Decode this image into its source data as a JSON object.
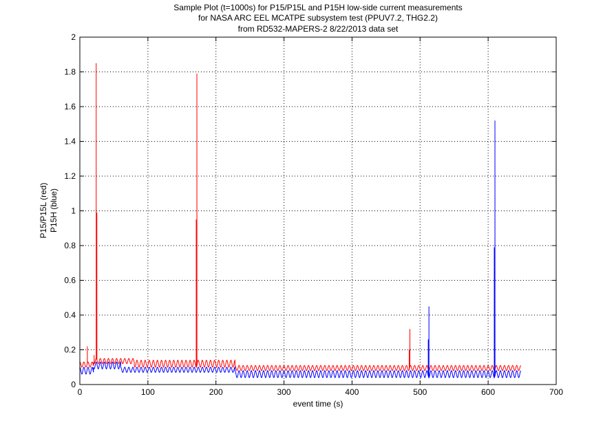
{
  "chart_data": {
    "type": "line",
    "title": [
      "Sample Plot (t=1000s) for P15/P15L and P15H low-side current measurements",
      "for NASA ARC EEL MCATPE subsystem test (PPUV7.2, THG2.2)",
      "from RD532-MAPERS-2 8/22/2013 data set"
    ],
    "xlabel": "event time (s)",
    "ylabel": [
      "P15/P15L (red)",
      "P15H (blue)"
    ],
    "xlim": [
      0,
      700
    ],
    "ylim": [
      0,
      2
    ],
    "xticks": [
      0,
      100,
      200,
      300,
      400,
      500,
      600,
      700
    ],
    "yticks": [
      0,
      0.2,
      0.4,
      0.6,
      0.8,
      1,
      1.2,
      1.4,
      1.6,
      1.8,
      2
    ],
    "grid": true,
    "series": [
      {
        "color": "#ff0000",
        "baseline_segments": [
          {
            "x_start": 0,
            "x_end": 20,
            "low": 0.1,
            "high": 0.13
          },
          {
            "x_start": 20,
            "x_end": 80,
            "low": 0.12,
            "high": 0.15
          },
          {
            "x_start": 80,
            "x_end": 228,
            "low": 0.1,
            "high": 0.14
          },
          {
            "x_start": 228,
            "x_end": 648,
            "low": 0.08,
            "high": 0.11
          }
        ],
        "period": 6,
        "spikes": [
          {
            "x": 11,
            "y": 0.22
          },
          {
            "x": 21,
            "y": 0.17
          },
          {
            "x": 24,
            "y": 1.85
          },
          {
            "x": 25,
            "y": 0.99
          },
          {
            "x": 171,
            "y": 0.95
          },
          {
            "x": 172,
            "y": 1.79
          },
          {
            "x": 484,
            "y": 0.2
          },
          {
            "x": 485,
            "y": 0.32
          }
        ]
      },
      {
        "color": "#0000ff",
        "baseline_segments": [
          {
            "x_start": 0,
            "x_end": 20,
            "low": 0.06,
            "high": 0.1
          },
          {
            "x_start": 20,
            "x_end": 60,
            "low": 0.09,
            "high": 0.13
          },
          {
            "x_start": 60,
            "x_end": 228,
            "low": 0.07,
            "high": 0.1
          },
          {
            "x_start": 228,
            "x_end": 648,
            "low": 0.04,
            "high": 0.08
          }
        ],
        "period": 6,
        "spikes": [
          {
            "x": 512,
            "y": 0.26
          },
          {
            "x": 513,
            "y": 0.45
          },
          {
            "x": 609,
            "y": 0.79
          },
          {
            "x": 610,
            "y": 1.52
          }
        ]
      }
    ]
  }
}
